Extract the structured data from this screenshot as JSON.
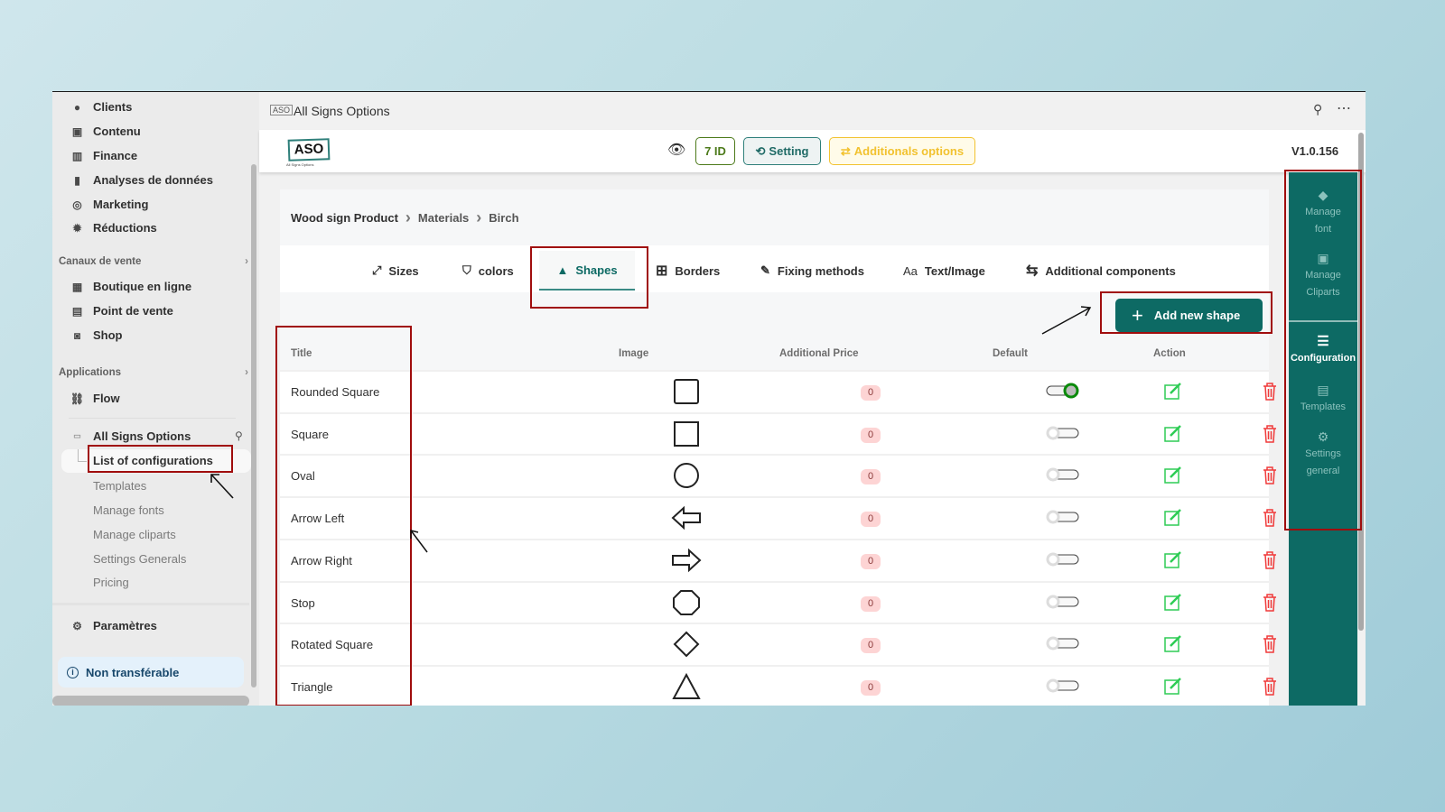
{
  "sidebar": {
    "items": [
      {
        "label": "Clients",
        "icon": "person-icon"
      },
      {
        "label": "Contenu",
        "icon": "content-icon"
      },
      {
        "label": "Finance",
        "icon": "bank-icon"
      },
      {
        "label": "Analyses de données",
        "icon": "bar-chart-icon"
      },
      {
        "label": "Marketing",
        "icon": "target-icon"
      },
      {
        "label": "Réductions",
        "icon": "discount-icon"
      }
    ],
    "sales_channels": {
      "label": "Canaux de vente",
      "items": [
        {
          "label": "Boutique en ligne",
          "icon": "store-icon"
        },
        {
          "label": "Point de vente",
          "icon": "pos-icon"
        },
        {
          "label": "Shop",
          "icon": "shop-icon"
        }
      ]
    },
    "applications": {
      "label": "Applications",
      "items": [
        {
          "label": "Flow",
          "icon": "flow-icon"
        }
      ]
    },
    "app": {
      "label": "All Signs Options",
      "subitems": [
        "List of configurations",
        "Templates",
        "Manage fonts",
        "Manage cliparts",
        "Settings Generals",
        "Pricing"
      ],
      "active": "List of configurations"
    },
    "settings": "Paramètres",
    "notice": "Non transférable"
  },
  "topbar": {
    "title": "All Signs Options"
  },
  "header": {
    "logo_text": "ASO",
    "logo_sub": "All Signs Options",
    "id_label": "7 ID",
    "setting_label": "Setting",
    "additional_label": "Additionals options",
    "version": "V1.0.156"
  },
  "breadcrumb": [
    "Wood sign Product",
    "Materials",
    "Birch"
  ],
  "tabs": [
    {
      "label": "Sizes",
      "icon": "resize-icon"
    },
    {
      "label": "colors",
      "icon": "paint-bucket-icon"
    },
    {
      "label": "Shapes",
      "icon": "shapes-icon",
      "active": true
    },
    {
      "label": "Borders",
      "icon": "grid-icon"
    },
    {
      "label": "Fixing methods",
      "icon": "drill-icon"
    },
    {
      "label": "Text/Image",
      "icon": "text-icon"
    },
    {
      "label": "Additional components",
      "icon": "sliders-icon"
    }
  ],
  "add_button": "Add new shape",
  "table": {
    "columns": [
      "Title",
      "Image",
      "Additional Price",
      "Default",
      "Action"
    ],
    "rows": [
      {
        "title": "Rounded Square",
        "shape": "rounded-square",
        "price": "0",
        "default": true
      },
      {
        "title": "Square",
        "shape": "square",
        "price": "0",
        "default": false
      },
      {
        "title": "Oval",
        "shape": "oval",
        "price": "0",
        "default": false
      },
      {
        "title": "Arrow Left",
        "shape": "arrow-left",
        "price": "0",
        "default": false
      },
      {
        "title": "Arrow Right",
        "shape": "arrow-right",
        "price": "0",
        "default": false
      },
      {
        "title": "Stop",
        "shape": "octagon",
        "price": "0",
        "default": false
      },
      {
        "title": "Rotated Square",
        "shape": "diamond",
        "price": "0",
        "default": false
      },
      {
        "title": "Triangle",
        "shape": "triangle",
        "price": "0",
        "default": false
      }
    ]
  },
  "right_panel": [
    {
      "label": "Manage font",
      "icon": "font-icon"
    },
    {
      "label": "Manage Cliparts",
      "icon": "clipart-icon"
    },
    {
      "label": "Configuration",
      "icon": "sliders-icon",
      "active": true
    },
    {
      "label": "Templates",
      "icon": "template-icon"
    },
    {
      "label": "Settings general",
      "icon": "settings-icon"
    }
  ],
  "colors": {
    "accent": "#0d6a64",
    "annotation": "#a00d0d",
    "toggle_on": "#0a8a0a",
    "edit": "#2ecc55",
    "delete": "#f03a3a",
    "warning": "#f2c230"
  }
}
